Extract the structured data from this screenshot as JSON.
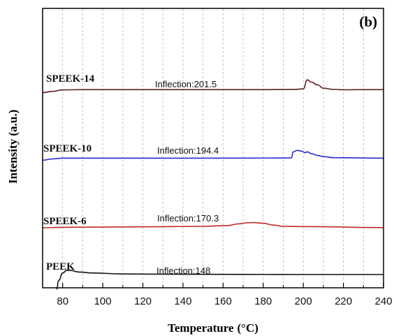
{
  "chart_data": {
    "type": "line",
    "panel_label": "(b)",
    "xlabel": "Temperature",
    "xlabel_unit": "(°C)",
    "ylabel": "Intensity (a.u.)",
    "xlim": [
      70,
      240
    ],
    "x_ticks": [
      "80",
      "100",
      "120",
      "140",
      "160",
      "180",
      "200",
      "220",
      "240"
    ],
    "x_tick_values": [
      80,
      100,
      120,
      140,
      160,
      180,
      200,
      220,
      240
    ],
    "grid": "vertical dashed",
    "legend": "none",
    "series": [
      {
        "name": "SPEEK-14",
        "color": "#5a2020",
        "annotation": "Inflection:201.5",
        "inflection": 201.5,
        "x": [
          70,
          75,
          80,
          90,
          120,
          150,
          180,
          195,
          200,
          202,
          204,
          207,
          210,
          215,
          220,
          230,
          240
        ],
        "y": [
          0.1,
          0.6,
          1.2,
          1.3,
          1.3,
          1.3,
          1.3,
          1.35,
          1.6,
          5.2,
          4.3,
          3.2,
          1.9,
          1.4,
          1.25,
          1.3,
          1.3
        ]
      },
      {
        "name": "SPEEK-10",
        "color": "#2a2ad0",
        "annotation": "Inflection:194.4",
        "inflection": 194.4,
        "x": [
          70,
          75,
          80,
          100,
          150,
          190,
          194,
          195,
          197,
          199,
          201,
          202,
          204,
          207,
          210,
          215,
          240
        ],
        "y": [
          0.2,
          0.7,
          1.0,
          1.0,
          1.0,
          1.05,
          1.1,
          3.5,
          4.1,
          3.8,
          3.2,
          3.5,
          2.8,
          2.1,
          1.6,
          1.2,
          1.0
        ]
      },
      {
        "name": "SPEEK-6",
        "color": "#c02828",
        "annotation": "Inflection:170.3",
        "inflection": 170.3,
        "x": [
          70,
          80,
          120,
          150,
          162,
          168,
          172,
          175,
          180,
          185,
          190,
          200,
          240
        ],
        "y": [
          0.8,
          1.0,
          1.2,
          1.4,
          1.7,
          2.4,
          2.8,
          2.9,
          2.6,
          1.9,
          1.4,
          1.3,
          0.9
        ]
      },
      {
        "name": "PEEK",
        "color": "#111111",
        "annotation": "Inflection:148",
        "inflection": 148,
        "x": [
          77,
          78,
          80,
          82,
          84,
          88,
          95,
          110,
          140,
          170,
          200,
          240
        ],
        "y": [
          -4.5,
          -1.0,
          2.0,
          3.0,
          3.0,
          2.4,
          2.0,
          1.6,
          1.5,
          1.45,
          1.4,
          1.4
        ]
      }
    ]
  }
}
